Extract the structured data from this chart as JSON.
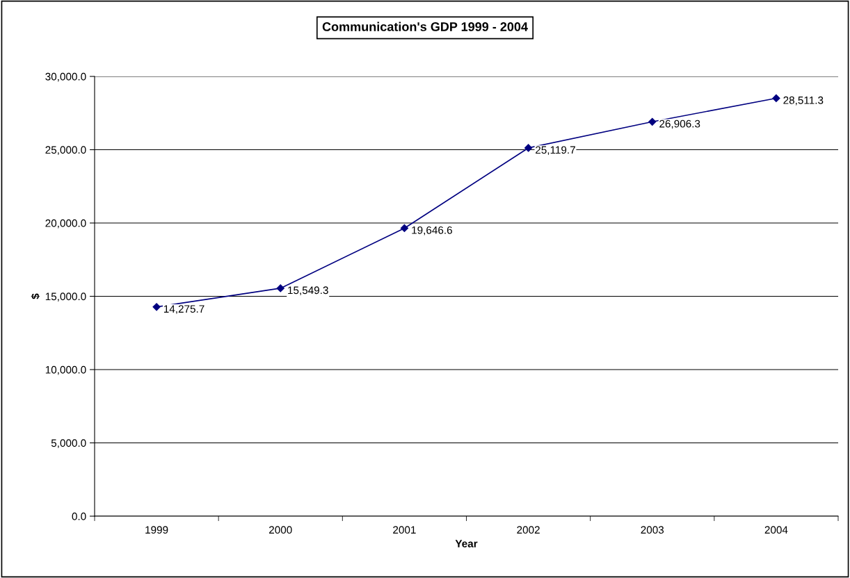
{
  "chart_data": {
    "type": "line",
    "title": "Communication's GDP 1999 - 2004",
    "xlabel": "Year",
    "ylabel": "$",
    "categories": [
      "1999",
      "2000",
      "2001",
      "2002",
      "2003",
      "2004"
    ],
    "series": [
      {
        "color": "#000080",
        "values": [
          14275.7,
          15549.3,
          19646.6,
          25119.7,
          26906.3,
          28511.3
        ],
        "value_labels": [
          "14,275.7",
          "15,549.3",
          "19,646.6",
          "25,119.7",
          "26,906.3",
          "28,511.3"
        ]
      }
    ],
    "ylim": [
      0,
      30000
    ],
    "yticks": [
      {
        "value": 0,
        "label": "0.0"
      },
      {
        "value": 5000,
        "label": "5,000.0"
      },
      {
        "value": 10000,
        "label": "10,000.0"
      },
      {
        "value": 15000,
        "label": "15,000.0"
      },
      {
        "value": 20000,
        "label": "20,000.0"
      },
      {
        "value": 25000,
        "label": "25,000.0"
      },
      {
        "value": 30000,
        "label": "30,000.0"
      }
    ],
    "grid": "y",
    "legend": false,
    "marker": "diamond",
    "line_style": "solid"
  }
}
